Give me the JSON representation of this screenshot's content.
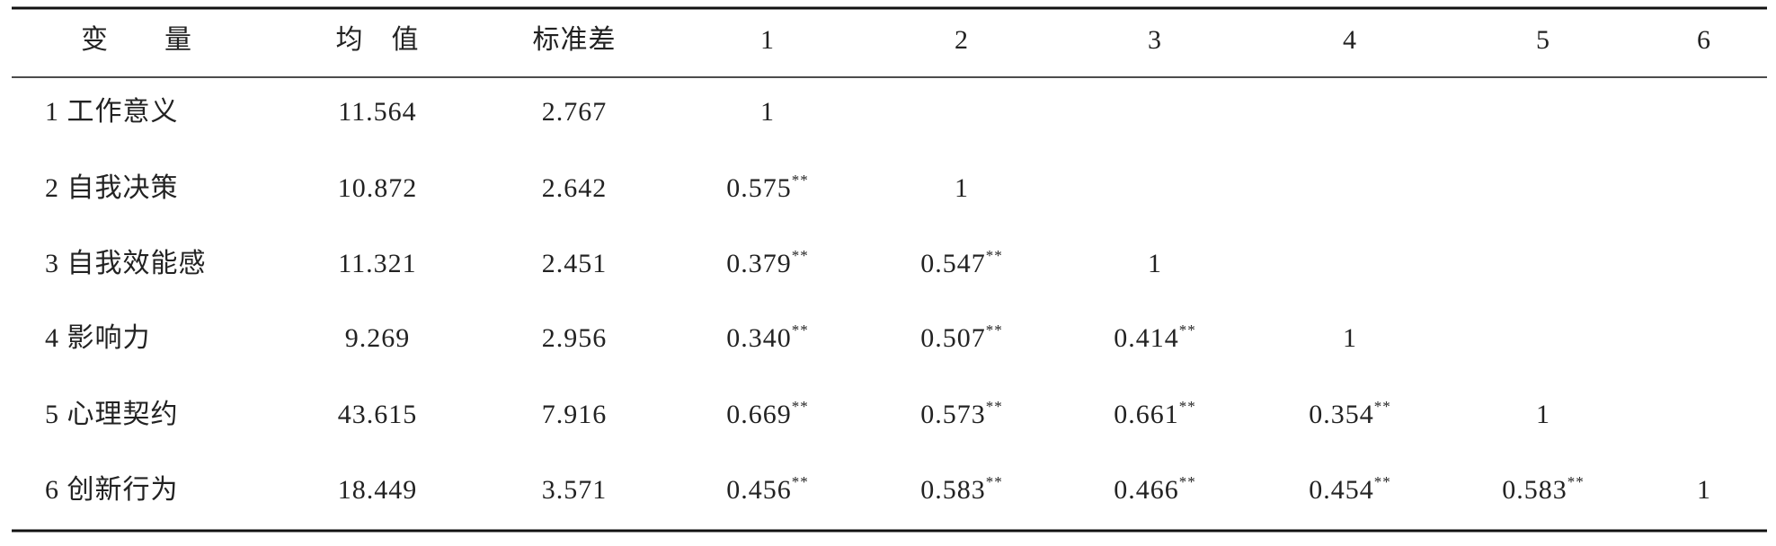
{
  "table": {
    "header": [
      "变　　量",
      "均　值",
      "标准差",
      "1",
      "2",
      "3",
      "4",
      "5",
      "6"
    ],
    "rows": [
      [
        "1 工作意义",
        "11.564",
        "2.767",
        "1"
      ],
      [
        "2 自我决策",
        "10.872",
        "2.642",
        {
          "r": "0.575",
          "sig": "**"
        },
        "1"
      ],
      [
        "3 自我效能感",
        "11.321",
        "2.451",
        {
          "r": "0.379",
          "sig": "**"
        },
        {
          "r": "0.547",
          "sig": "**"
        },
        "1"
      ],
      [
        "4 影响力",
        "9.269",
        "2.956",
        {
          "r": "0.340",
          "sig": "**"
        },
        {
          "r": "0.507",
          "sig": "**"
        },
        {
          "r": "0.414",
          "sig": "**"
        },
        "1"
      ],
      [
        "5 心理契约",
        "43.615",
        "7.916",
        {
          "r": "0.669",
          "sig": "**"
        },
        {
          "r": "0.573",
          "sig": "**"
        },
        {
          "r": "0.661",
          "sig": "**"
        },
        {
          "r": "0.354",
          "sig": "**"
        },
        "1"
      ],
      [
        "6 创新行为",
        "18.449",
        "3.571",
        {
          "r": "0.456",
          "sig": "**"
        },
        {
          "r": "0.583",
          "sig": "**"
        },
        {
          "r": "0.466",
          "sig": "**"
        },
        {
          "r": "0.454",
          "sig": "**"
        },
        {
          "r": "0.583",
          "sig": "**"
        },
        "1"
      ]
    ]
  }
}
